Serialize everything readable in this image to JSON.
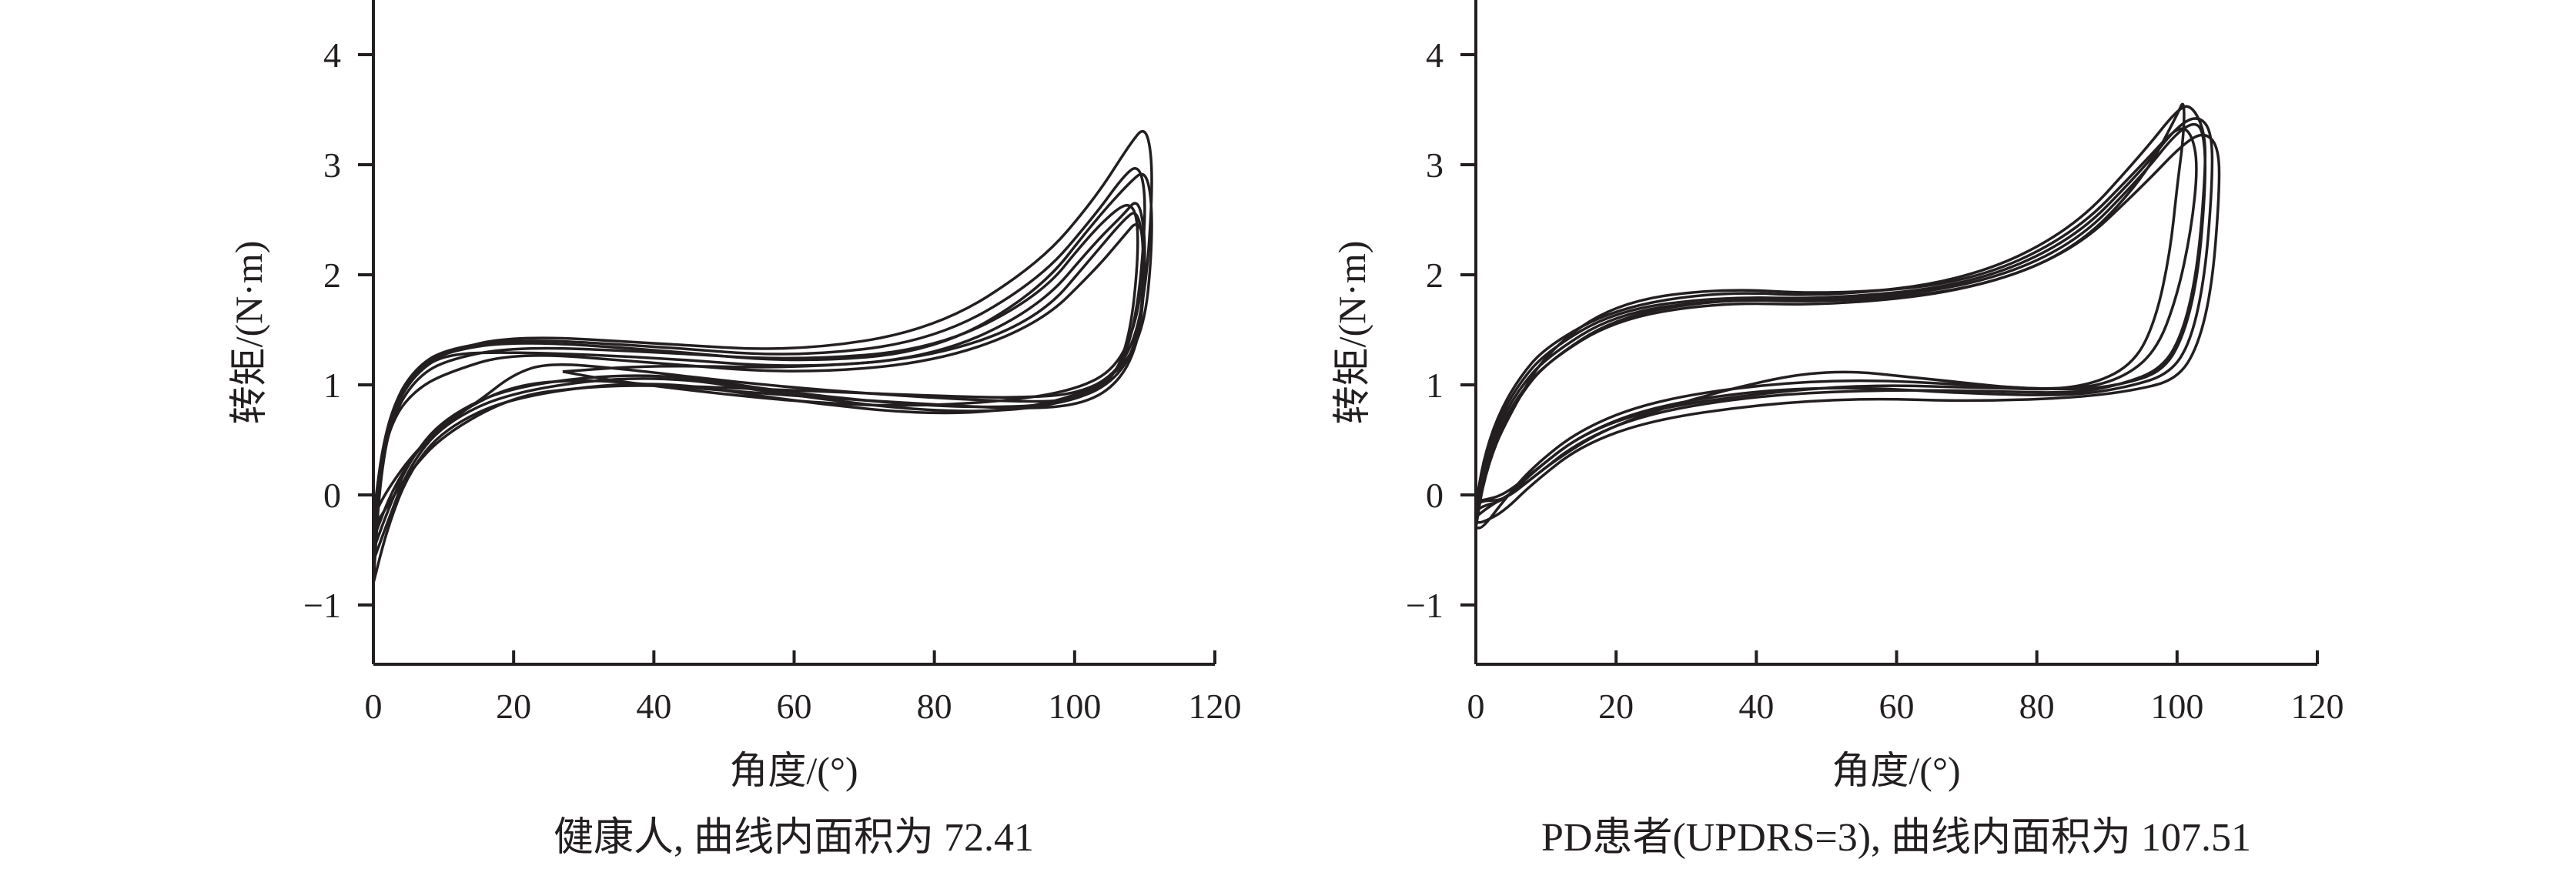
{
  "chart_data": [
    {
      "type": "line",
      "caption": "健康人, 曲线内面积为 72.41",
      "xlabel": "角度/(°)",
      "ylabel": "转矩/(N·m)",
      "xlim": [
        0,
        120
      ],
      "ylim": [
        -1.5,
        4.5
      ],
      "xticks": [
        "0",
        "20",
        "40",
        "60",
        "80",
        "100",
        "120"
      ],
      "yticks": [
        "−1",
        "0",
        "1",
        "2",
        "3",
        "4"
      ],
      "grid": false,
      "loops": [
        {
          "x": [
            0,
            1,
            3,
            6,
            10,
            20,
            40,
            60,
            80,
            95,
            103,
            108,
            110,
            111,
            111,
            110,
            108,
            104,
            95,
            80,
            60,
            40,
            20,
            10,
            5,
            2,
            0
          ],
          "y": [
            -0.8,
            0.2,
            0.8,
            1.1,
            1.3,
            1.45,
            1.38,
            1.3,
            1.5,
            2.1,
            2.7,
            3.2,
            3.35,
            3.1,
            2.6,
            1.8,
            1.3,
            1.0,
            0.8,
            0.72,
            0.85,
            1.05,
            0.9,
            0.6,
            0.2,
            -0.3,
            -0.8
          ]
        },
        {
          "x": [
            0,
            1,
            3,
            6,
            10,
            20,
            40,
            60,
            80,
            95,
            103,
            107,
            109,
            110,
            110,
            109,
            107,
            103,
            95,
            80,
            60,
            40,
            20,
            10,
            5,
            2,
            0
          ],
          "y": [
            -0.6,
            0.3,
            0.85,
            1.15,
            1.32,
            1.42,
            1.35,
            1.25,
            1.4,
            1.95,
            2.55,
            2.9,
            3.0,
            2.8,
            2.4,
            1.7,
            1.2,
            0.95,
            0.78,
            0.75,
            0.9,
            1.1,
            0.95,
            0.65,
            0.25,
            -0.25,
            -0.6
          ]
        },
        {
          "x": [
            0,
            1,
            3,
            6,
            10,
            20,
            40,
            60,
            80,
            95,
            102,
            106,
            108,
            109,
            109,
            108,
            106,
            102,
            95,
            80,
            60,
            40,
            20,
            10,
            5,
            2,
            0
          ],
          "y": [
            -0.5,
            0.25,
            0.75,
            1.05,
            1.22,
            1.35,
            1.3,
            1.22,
            1.32,
            1.8,
            2.35,
            2.6,
            2.65,
            2.5,
            2.1,
            1.5,
            1.1,
            0.9,
            0.8,
            0.8,
            0.92,
            1.12,
            1.0,
            0.7,
            0.3,
            -0.15,
            -0.5
          ]
        },
        {
          "x": [
            0,
            1,
            3,
            6,
            10,
            20,
            40,
            60,
            80,
            95,
            103,
            107,
            109,
            110,
            110,
            109,
            106,
            100,
            90,
            75,
            55,
            35,
            25,
            20,
            15,
            8,
            3,
            0
          ],
          "y": [
            -0.4,
            0.3,
            0.8,
            1.1,
            1.28,
            1.3,
            1.25,
            1.15,
            1.25,
            1.7,
            2.3,
            2.55,
            2.7,
            2.4,
            2.0,
            1.4,
            1.05,
            0.85,
            0.85,
            0.9,
            1.0,
            1.15,
            1.2,
            1.1,
            0.85,
            0.55,
            0.1,
            -0.4
          ]
        },
        {
          "x": [
            0,
            1,
            3,
            6,
            10,
            20,
            40,
            60,
            80,
            95,
            103,
            108,
            110,
            111,
            111,
            110,
            107,
            101,
            92,
            80,
            60,
            40,
            30,
            20,
            10,
            5,
            2,
            0
          ],
          "y": [
            -0.3,
            0.35,
            0.85,
            1.12,
            1.3,
            1.4,
            1.32,
            1.2,
            1.3,
            1.85,
            2.5,
            2.85,
            2.95,
            2.7,
            2.2,
            1.55,
            1.15,
            0.92,
            0.88,
            0.9,
            0.95,
            1.0,
            0.98,
            0.9,
            0.55,
            0.2,
            -0.1,
            -0.3
          ]
        },
        {
          "x": [
            27,
            40,
            60,
            80,
            95,
            103,
            107,
            109,
            110,
            109,
            106,
            100,
            90,
            75,
            60,
            45,
            33,
            27
          ],
          "y": [
            1.12,
            1.18,
            1.15,
            1.25,
            1.6,
            2.2,
            2.5,
            2.6,
            2.2,
            1.6,
            1.15,
            0.95,
            0.85,
            0.8,
            0.85,
            0.95,
            1.05,
            1.12
          ]
        },
        {
          "x": [
            0,
            1,
            3,
            6,
            10,
            20,
            40,
            60,
            80,
            95,
            103,
            107,
            109,
            110,
            110,
            109,
            106,
            101,
            93,
            80,
            60,
            40,
            30,
            20,
            12,
            6,
            2,
            0
          ],
          "y": [
            -0.2,
            0.3,
            0.72,
            0.95,
            1.1,
            1.3,
            1.2,
            1.1,
            1.2,
            1.55,
            2.05,
            2.35,
            2.5,
            2.3,
            1.9,
            1.35,
            1.0,
            0.82,
            0.78,
            0.82,
            0.9,
            1.0,
            1.05,
            1.0,
            0.75,
            0.4,
            0.05,
            -0.2
          ]
        }
      ]
    },
    {
      "type": "line",
      "caption": "PD患者(UPDRS=3), 曲线内面积为 107.51",
      "xlabel": "角度/(°)",
      "ylabel": "转矩/(N·m)",
      "xlim": [
        0,
        120
      ],
      "ylim": [
        -1.5,
        4.5
      ],
      "xticks": [
        "0",
        "20",
        "40",
        "60",
        "80",
        "100",
        "120"
      ],
      "yticks": [
        "−1",
        "0",
        "1",
        "2",
        "3",
        "4"
      ],
      "grid": false,
      "loops": [
        {
          "x": [
            0,
            1,
            3,
            6,
            10,
            20,
            35,
            50,
            70,
            85,
            95,
            100,
            102,
            104,
            104,
            103,
            101,
            98,
            92,
            85,
            70,
            55,
            40,
            25,
            15,
            8,
            4,
            1,
            0
          ],
          "y": [
            -0.1,
            0.3,
            0.7,
            1.05,
            1.35,
            1.7,
            1.85,
            1.8,
            1.95,
            2.4,
            3.1,
            3.5,
            3.55,
            3.3,
            2.9,
            2.1,
            1.5,
            1.15,
            1.0,
            0.92,
            0.95,
            0.95,
            0.9,
            0.75,
            0.5,
            0.15,
            -0.05,
            -0.05,
            -0.1
          ]
        },
        {
          "x": [
            0,
            1,
            3,
            6,
            10,
            20,
            35,
            50,
            70,
            85,
            95,
            100,
            103,
            105,
            105,
            104,
            102,
            99,
            93,
            85,
            70,
            55,
            40,
            25,
            15,
            8,
            4,
            1,
            0
          ],
          "y": [
            -0.15,
            0.25,
            0.65,
            1.0,
            1.3,
            1.68,
            1.8,
            1.78,
            1.9,
            2.3,
            2.95,
            3.35,
            3.45,
            3.3,
            2.8,
            2.0,
            1.4,
            1.1,
            0.98,
            0.9,
            0.92,
            0.98,
            0.95,
            0.8,
            0.55,
            0.2,
            -0.05,
            -0.1,
            -0.15
          ]
        },
        {
          "x": [
            0,
            1,
            3,
            6,
            10,
            20,
            35,
            50,
            70,
            85,
            95,
            100,
            101,
            101,
            100,
            99,
            97,
            94,
            88,
            80,
            65,
            50,
            35,
            20,
            12,
            6,
            2,
            0
          ],
          "y": [
            -0.2,
            0.2,
            0.6,
            0.95,
            1.25,
            1.65,
            1.78,
            1.75,
            1.85,
            2.2,
            2.85,
            3.45,
            3.6,
            3.3,
            2.8,
            2.2,
            1.6,
            1.2,
            1.0,
            0.95,
            1.05,
            1.15,
            0.95,
            0.65,
            0.35,
            0.05,
            -0.1,
            -0.2
          ]
        },
        {
          "x": [
            0,
            1,
            3,
            6,
            10,
            20,
            35,
            50,
            70,
            85,
            95,
            101,
            104,
            106,
            106,
            105,
            103,
            100,
            94,
            85,
            70,
            55,
            40,
            25,
            15,
            8,
            4,
            1,
            0
          ],
          "y": [
            -0.25,
            0.15,
            0.55,
            0.9,
            1.2,
            1.6,
            1.75,
            1.72,
            1.85,
            2.2,
            2.8,
            3.2,
            3.3,
            3.15,
            2.7,
            1.9,
            1.35,
            1.05,
            0.95,
            0.88,
            0.85,
            0.88,
            0.82,
            0.68,
            0.45,
            0.1,
            -0.15,
            -0.25,
            -0.25
          ]
        },
        {
          "x": [
            0,
            1,
            3,
            6,
            10,
            20,
            35,
            50,
            70,
            85,
            95,
            100,
            103,
            104,
            104,
            103,
            101,
            98,
            92,
            85,
            70,
            55,
            40,
            25,
            15,
            8,
            4,
            1,
            0
          ],
          "y": [
            -0.3,
            0.1,
            0.5,
            0.88,
            1.2,
            1.62,
            1.78,
            1.76,
            1.88,
            2.25,
            2.9,
            3.3,
            3.4,
            3.2,
            2.75,
            2.0,
            1.45,
            1.12,
            1.0,
            0.95,
            1.0,
            1.05,
            1.0,
            0.85,
            0.6,
            0.25,
            -0.05,
            -0.3,
            -0.3
          ]
        },
        {
          "x": [
            0,
            2,
            5,
            10,
            20,
            35,
            50,
            70,
            85,
            95,
            100,
            102,
            103,
            102,
            100,
            97,
            92,
            85,
            70,
            55,
            40,
            25,
            15,
            8,
            4,
            1,
            0
          ],
          "y": [
            -0.05,
            0.35,
            0.75,
            1.3,
            1.75,
            1.88,
            1.82,
            1.92,
            2.35,
            3.0,
            3.35,
            3.3,
            3.0,
            2.4,
            1.8,
            1.3,
            1.05,
            0.95,
            0.98,
            1.0,
            0.92,
            0.78,
            0.55,
            0.2,
            0.0,
            -0.05,
            -0.05
          ]
        }
      ]
    }
  ]
}
